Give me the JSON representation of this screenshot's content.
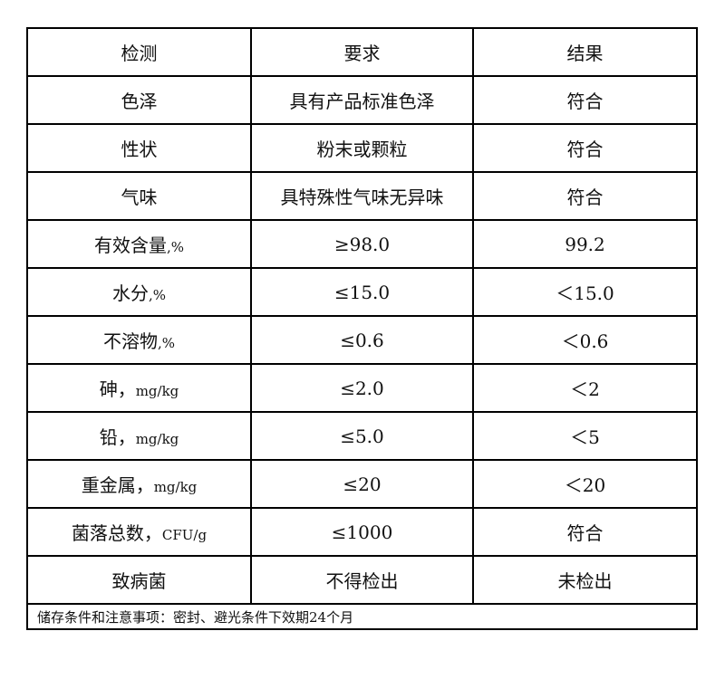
{
  "header": [
    "检测",
    "要求",
    "结果"
  ],
  "rows": [
    {
      "item": "色泽",
      "unit": "",
      "req": "具有产品标准色泽",
      "result": "符合"
    },
    {
      "item": "性状",
      "unit": "",
      "req": "粉末或颗粒",
      "result": "符合"
    },
    {
      "item": "气味",
      "unit": "",
      "req": "具特殊性气味无异味",
      "result": "符合"
    },
    {
      "item": "有效含量",
      "unit": ",%",
      "req": "≥98.0",
      "result": "99.2"
    },
    {
      "item": "水分",
      "unit": ",%",
      "req": "≤15.0",
      "result": "＜15.0"
    },
    {
      "item": "不溶物",
      "unit": ",%",
      "req": "≤0.6",
      "result": "＜0.6"
    },
    {
      "item": "砷，",
      "unit": "mg/kg",
      "req": "≤2.0",
      "result": "＜2"
    },
    {
      "item": "铅，",
      "unit": "mg/kg",
      "req": "≤5.0",
      "result": "＜5"
    },
    {
      "item": "重金属，",
      "unit": "mg/kg",
      "req": "≤20",
      "result": "＜20"
    },
    {
      "item": "菌落总数，",
      "unit": "CFU/g",
      "req": "≤1000",
      "result": "符合"
    },
    {
      "item": "致病菌",
      "unit": "",
      "req": "不得检出",
      "result": "未检出"
    }
  ],
  "footer": "储存条件和注意事项：密封、避光条件下效期24个月"
}
